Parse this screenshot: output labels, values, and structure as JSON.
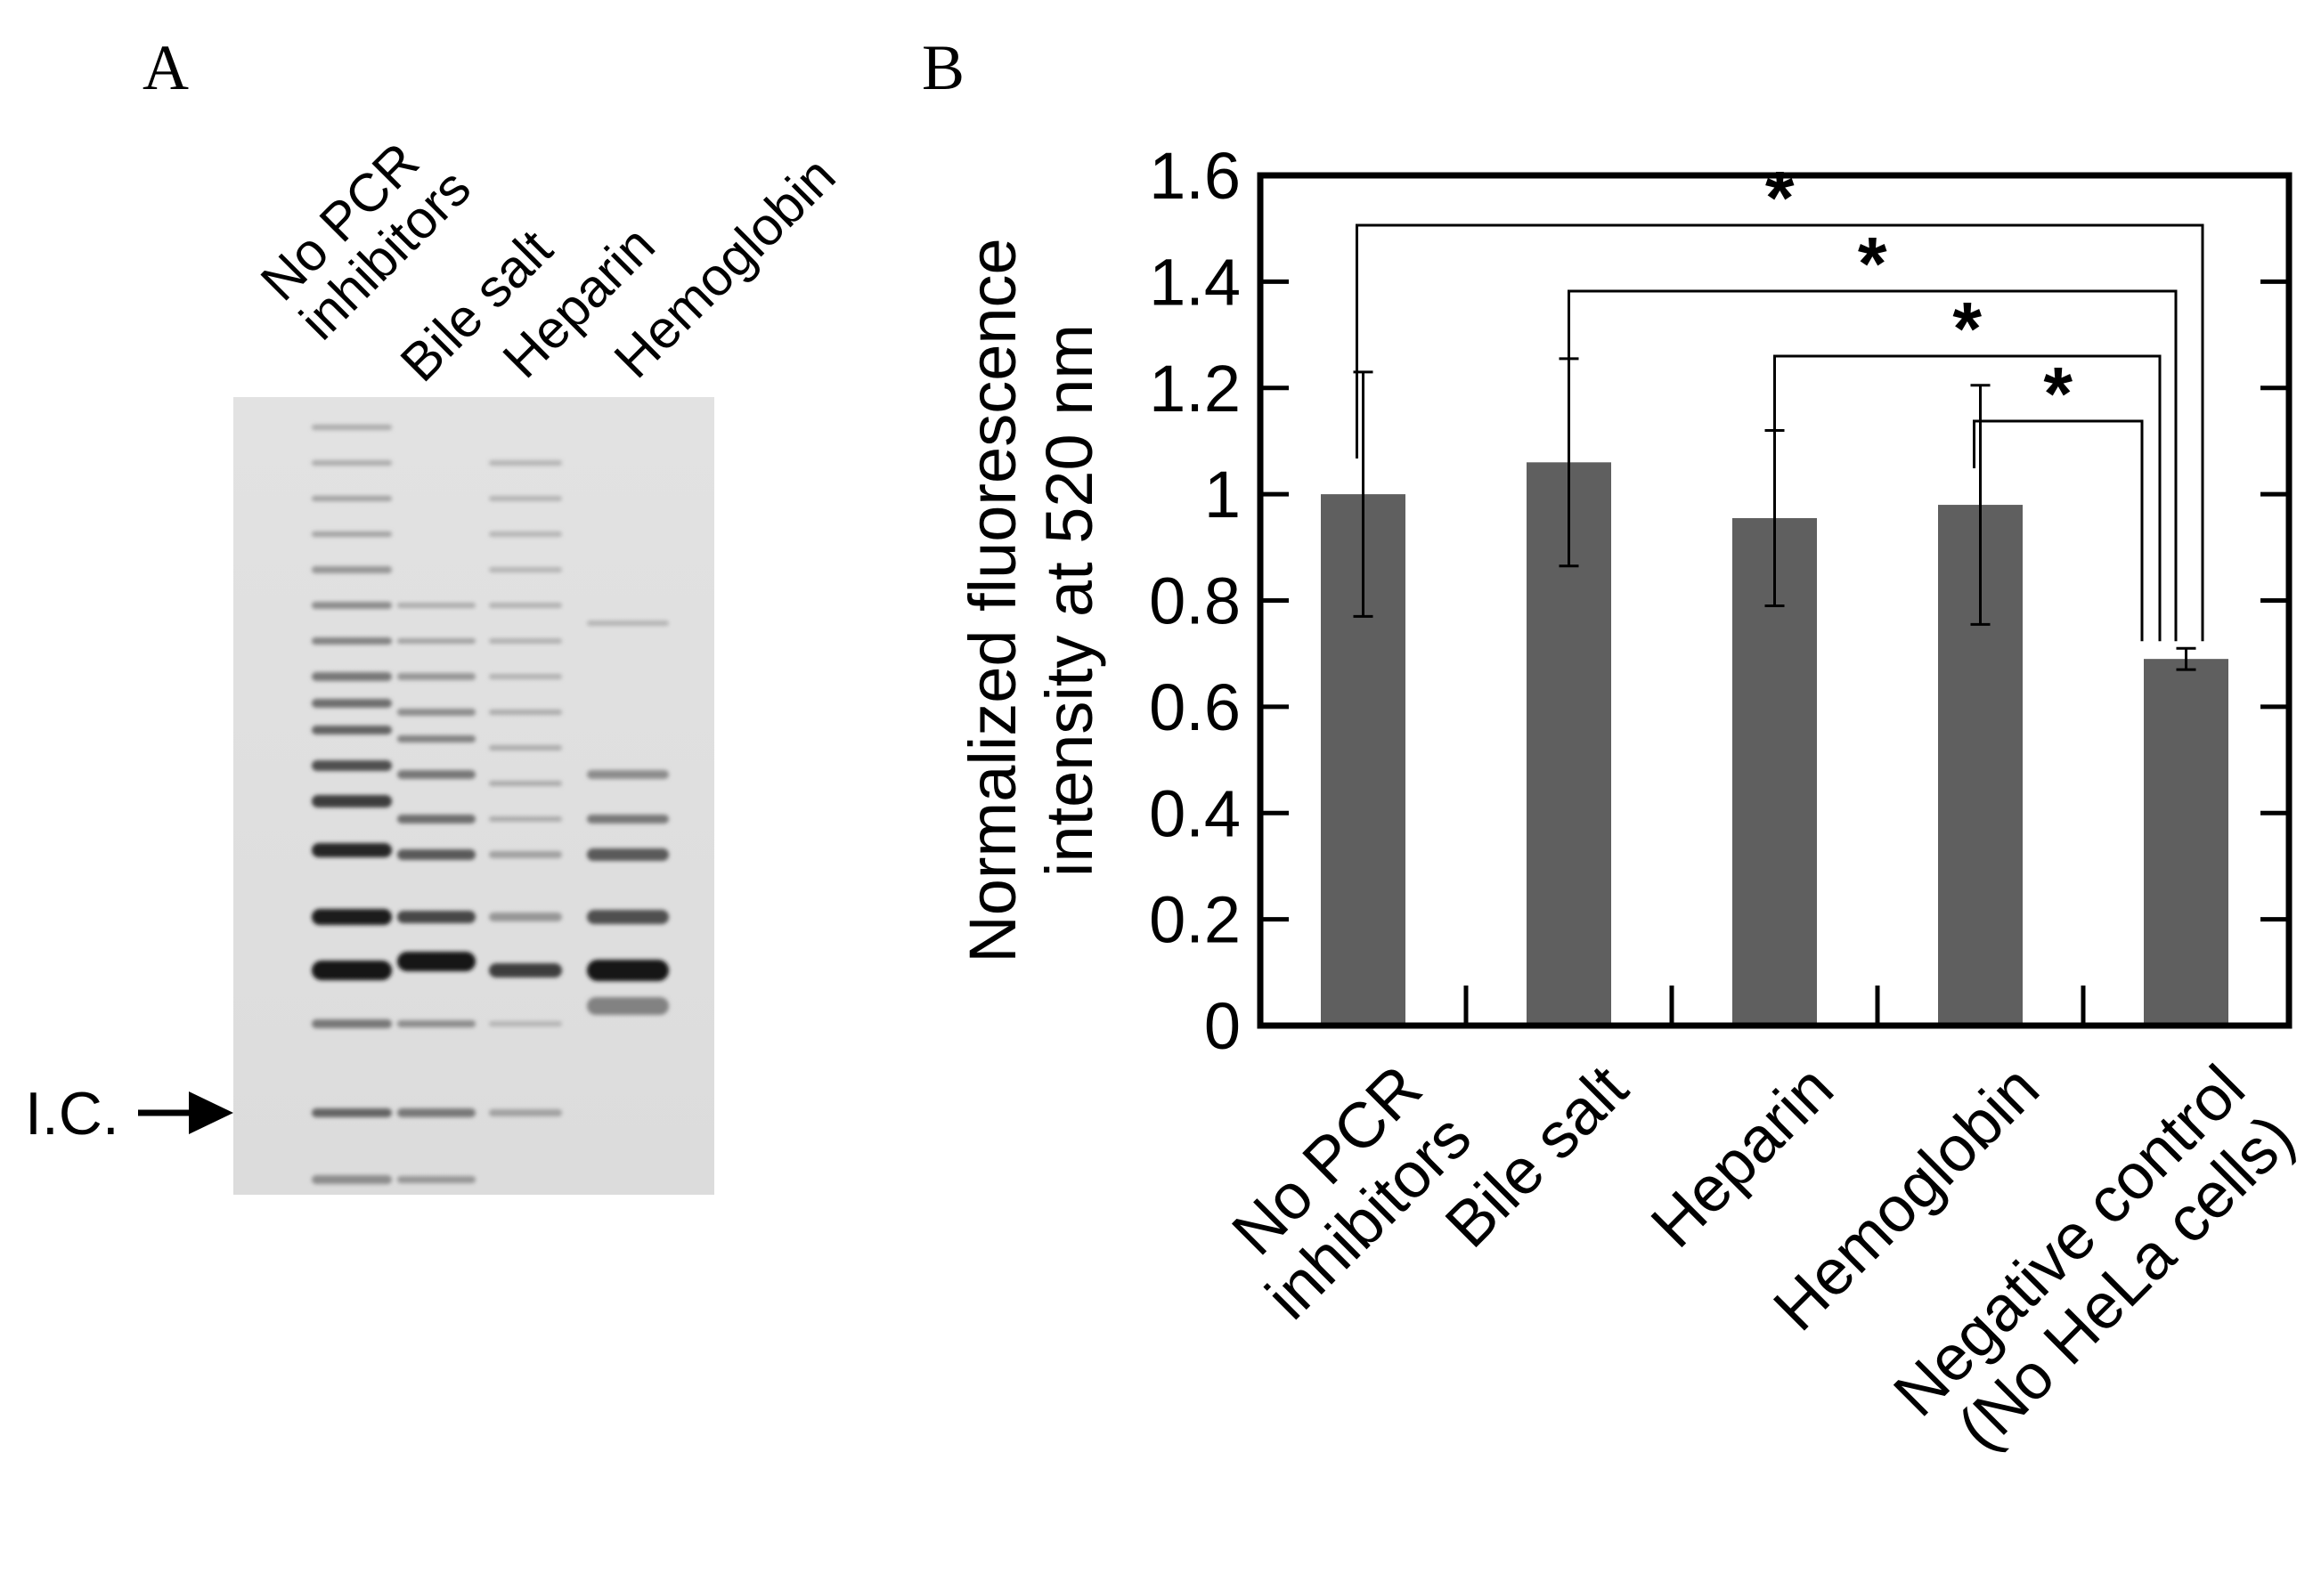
{
  "panel_a": {
    "letter": "A",
    "lanes": [
      "No PCR|inhibitors",
      "Bile salt",
      "Heparin",
      "Hemoglobin"
    ],
    "ic_label": "I.C."
  },
  "panel_b": {
    "letter": "B"
  },
  "chart_data": {
    "type": "bar",
    "categories": [
      "No PCR|inhibitors",
      "Bile salt",
      "Heparin",
      "Hemoglobin",
      "Negative control|(No HeLa cells)"
    ],
    "series": [
      {
        "values": [
          1.0,
          1.06,
          0.955,
          0.98,
          0.69
        ],
        "errors": [
          0.23,
          0.195,
          0.165,
          0.225,
          0.02
        ]
      }
    ],
    "xlabel": "",
    "ylabel": "Normalized fluorescence|intensity at 520 nm",
    "ylim": [
      0,
      1.6
    ],
    "yticks": [
      0,
      0.2,
      0.4,
      0.6,
      0.8,
      1,
      1.2,
      1.4,
      1.6
    ],
    "ytick_labels": [
      "0",
      "0.2",
      "0.4",
      "0.6",
      "0.8",
      "1",
      "1.2",
      "1.4",
      "1.6"
    ],
    "bar_color": "#5f5f5f",
    "grid": false,
    "significance": [
      {
        "from": 0,
        "to": 4,
        "label": "*"
      },
      {
        "from": 1,
        "to": 4,
        "label": "*"
      },
      {
        "from": 2,
        "to": 4,
        "label": "*"
      },
      {
        "from": 3,
        "to": 4,
        "label": "*"
      }
    ]
  }
}
